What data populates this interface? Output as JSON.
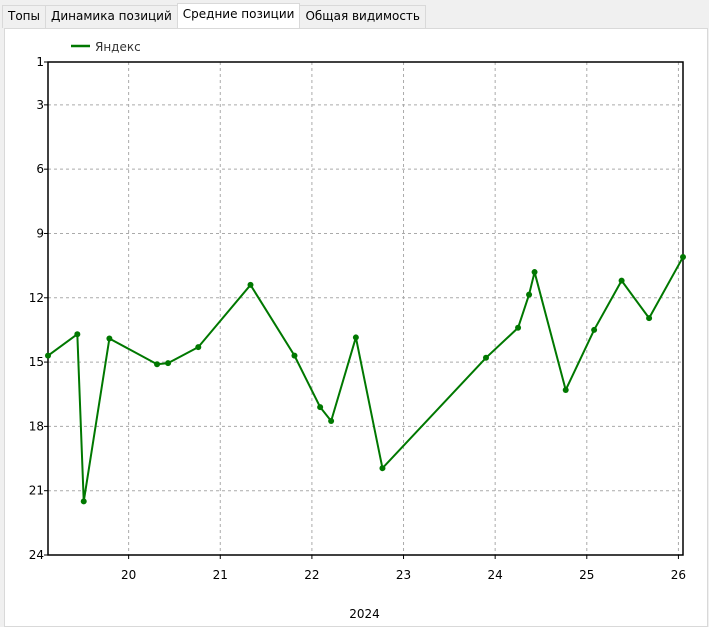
{
  "tabs": [
    {
      "label": "Топы"
    },
    {
      "label": "Динамика позиций"
    },
    {
      "label": "Средние позиции",
      "active": true
    },
    {
      "label": "Общая видимость"
    }
  ],
  "chart_data": {
    "type": "line",
    "title": "",
    "xlabel": "2024",
    "ylabel": "",
    "y_inverted": true,
    "ylim": [
      1,
      24
    ],
    "yticks": [
      1,
      3,
      6,
      9,
      12,
      15,
      18,
      21,
      24
    ],
    "xlim": [
      19.12,
      26.05
    ],
    "xticks": [
      20,
      21,
      22,
      23,
      24,
      25,
      26
    ],
    "grid": true,
    "legend": "top-left",
    "series": [
      {
        "name": "Яндекс",
        "color": "#007800",
        "x": [
          19.12,
          19.44,
          19.51,
          19.79,
          20.31,
          20.43,
          20.76,
          21.33,
          21.81,
          22.09,
          22.21,
          22.48,
          22.77,
          23.9,
          24.25,
          24.37,
          24.43,
          24.77,
          25.08,
          25.38,
          25.68,
          26.05
        ],
        "y": [
          14.7,
          13.7,
          21.5,
          13.9,
          15.1,
          15.05,
          14.3,
          11.4,
          14.7,
          17.1,
          17.75,
          13.85,
          19.95,
          14.8,
          13.4,
          11.85,
          10.8,
          16.3,
          13.5,
          11.2,
          12.95,
          10.1
        ]
      }
    ]
  }
}
